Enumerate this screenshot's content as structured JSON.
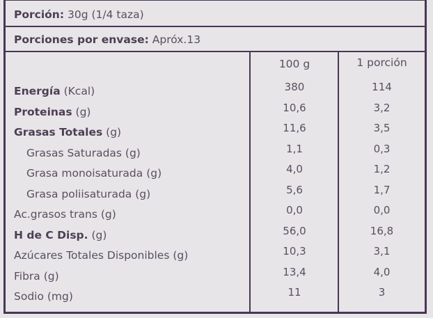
{
  "portion": {
    "label": "Porción:",
    "value": "30g (1/4 taza)"
  },
  "servings": {
    "label": "Porciones por envase:",
    "value": "Apróx.13"
  },
  "columns": [
    "100 g",
    "1 porción"
  ],
  "rows": [
    {
      "bold": "Energía",
      "rest": " (Kcal)",
      "v100": "380",
      "vport": "114",
      "indent": false
    },
    {
      "bold": "Proteinas",
      "rest": " (g)",
      "v100": "10,6",
      "vport": "3,2",
      "indent": false
    },
    {
      "bold": "Grasas Totales",
      "rest": " (g)",
      "v100": "11,6",
      "vport": "3,5",
      "indent": false
    },
    {
      "bold": "",
      "rest": "Grasas Saturadas (g)",
      "v100": "1,1",
      "vport": "0,3",
      "indent": true
    },
    {
      "bold": "",
      "rest": "Grasa monoisaturada (g)",
      "v100": "4,0",
      "vport": "1,2",
      "indent": true
    },
    {
      "bold": "",
      "rest": "Grasa poliisaturada (g)",
      "v100": "5,6",
      "vport": "1,7",
      "indent": true
    },
    {
      "bold": "",
      "rest": "Ac.grasos trans (g)",
      "v100": "0,0",
      "vport": "0,0",
      "indent": false
    },
    {
      "bold": "H de C Disp.",
      "rest": " (g)",
      "v100": "56,0",
      "vport": "16,8",
      "indent": false
    },
    {
      "bold": "",
      "rest": "Azúcares Totales Disponibles (g)",
      "v100": "10,3",
      "vport": "3,1",
      "indent": false
    },
    {
      "bold": "",
      "rest": "Fibra (g)",
      "v100": "13,4",
      "vport": "4,0",
      "indent": false
    },
    {
      "bold": "",
      "rest": "Sodio (mg)",
      "v100": "11",
      "vport": "3",
      "indent": false
    }
  ],
  "colors": {
    "border": "#4a3555",
    "text": "#5b4d60",
    "background": "#e7e5e8"
  }
}
